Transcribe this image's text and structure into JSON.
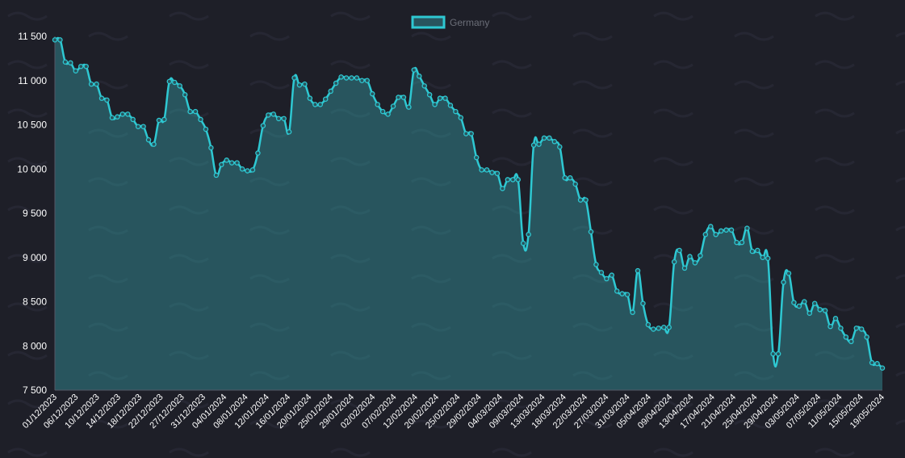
{
  "chart_data": {
    "type": "area",
    "title": "",
    "xlabel": "",
    "ylabel": "",
    "ylim": [
      7500,
      11500
    ],
    "y_ticks": [
      "11 500",
      "11 000",
      "10 500",
      "10 000",
      "9 500",
      "9 000",
      "8 500",
      "8 000",
      "7 500"
    ],
    "y_tick_values": [
      11500,
      11000,
      10500,
      10000,
      9500,
      9000,
      8500,
      8000,
      7500
    ],
    "x_tick_labels": [
      "01/12/2023",
      "06/12/2023",
      "10/12/2023",
      "14/12/2023",
      "18/12/2023",
      "22/12/2023",
      "27/12/2023",
      "31/12/2023",
      "04/01/2024",
      "08/01/2024",
      "12/01/2024",
      "16/01/2024",
      "20/01/2024",
      "25/01/2024",
      "29/01/2024",
      "02/02/2024",
      "07/02/2024",
      "12/02/2024",
      "20/02/2024",
      "25/02/2024",
      "29/02/2024",
      "04/03/2024",
      "09/03/2024",
      "13/03/2024",
      "18/03/2024",
      "22/03/2024",
      "27/03/2024",
      "31/03/2024",
      "05/04/2024",
      "09/04/2024",
      "13/04/2024",
      "17/04/2024",
      "21/04/2024",
      "25/04/2024",
      "29/04/2024",
      "03/05/2024",
      "07/05/2024",
      "11/05/2024",
      "15/05/2024",
      "19/05/2024"
    ],
    "grid": false,
    "legend_position": "top-center",
    "colors": {
      "line": "#2ec8d2",
      "fill": "#28555e",
      "background": "#1e1f28"
    },
    "series": [
      {
        "name": "Germany",
        "values": [
          11460,
          11460,
          11210,
          11200,
          11110,
          11160,
          11160,
          10960,
          10960,
          10800,
          10780,
          10580,
          10590,
          10620,
          10620,
          10560,
          10480,
          10480,
          10330,
          10280,
          10550,
          10560,
          10990,
          10980,
          10940,
          10840,
          10650,
          10650,
          10560,
          10450,
          10240,
          9930,
          10050,
          10100,
          10070,
          10070,
          10000,
          9980,
          9990,
          10180,
          10490,
          10610,
          10620,
          10570,
          10570,
          10420,
          11030,
          10950,
          10960,
          10800,
          10730,
          10730,
          10790,
          10880,
          10970,
          11040,
          11030,
          11030,
          11030,
          11000,
          11000,
          10850,
          10730,
          10650,
          10620,
          10710,
          10810,
          10810,
          10700,
          11120,
          11050,
          10940,
          10840,
          10730,
          10800,
          10800,
          10720,
          10650,
          10580,
          10400,
          10400,
          10130,
          9990,
          9990,
          9960,
          9950,
          9780,
          9880,
          9880,
          9880,
          9160,
          9260,
          10270,
          10280,
          10350,
          10350,
          10310,
          10250,
          9900,
          9900,
          9830,
          9650,
          9650,
          9290,
          8920,
          8830,
          8760,
          8800,
          8620,
          8590,
          8580,
          8380,
          8850,
          8480,
          8240,
          8190,
          8200,
          8210,
          8210,
          8950,
          9080,
          8880,
          9010,
          8940,
          9020,
          9260,
          9350,
          9260,
          9300,
          9310,
          9310,
          9170,
          9170,
          9330,
          9070,
          9080,
          9000,
          8990,
          7910,
          7910,
          8720,
          8820,
          8490,
          8450,
          8500,
          8370,
          8480,
          8410,
          8400,
          8220,
          8310,
          8200,
          8100,
          8050,
          8200,
          8190,
          8100,
          7810,
          7800,
          7750
        ]
      }
    ]
  }
}
